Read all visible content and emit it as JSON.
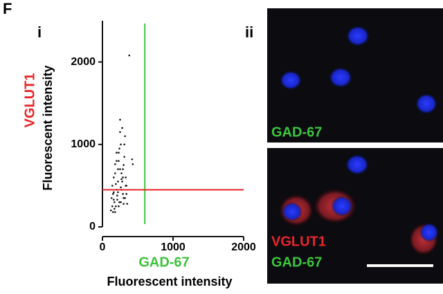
{
  "panel_label": "F",
  "chart_data": {
    "type": "scatter",
    "subpanel": "i",
    "y_label": "Fluorescent intensity",
    "y_label_marker": "VGLUT1",
    "x_label_marker": "GAD-67",
    "x_label": "Fluorescent intensity",
    "x": [
      120,
      130,
      140,
      150,
      160,
      170,
      180,
      190,
      200,
      210,
      220,
      230,
      240,
      250,
      260,
      270,
      280,
      290,
      300,
      310,
      320,
      330,
      340,
      350,
      140,
      160,
      180,
      200,
      220,
      240,
      260,
      280,
      300,
      150,
      170,
      190,
      210,
      230,
      250,
      270,
      290,
      310,
      330,
      200,
      230,
      260,
      290,
      320,
      380,
      420,
      430,
      250,
      270,
      220,
      180,
      300,
      340,
      160
    ],
    "y": [
      200,
      350,
      500,
      180,
      420,
      300,
      650,
      250,
      800,
      380,
      550,
      900,
      300,
      700,
      1000,
      450,
      1200,
      600,
      350,
      850,
      1100,
      500,
      400,
      280,
      250,
      600,
      180,
      450,
      700,
      950,
      300,
      550,
      750,
      400,
      220,
      520,
      330,
      800,
      1300,
      650,
      400,
      1000,
      600,
      900,
      250,
      480,
      700,
      350,
      2080,
      820,
      760,
      1150,
      580,
      420,
      760,
      280,
      500,
      330
    ],
    "color": "#111111",
    "xlim": [
      0,
      2000
    ],
    "ylim": [
      0,
      2500
    ],
    "xticks": [
      0,
      1000,
      2000
    ],
    "yticks": [
      0,
      1000,
      2000
    ],
    "x_threshold": 600,
    "x_threshold_color": "#3cc43c",
    "y_threshold": 450,
    "y_threshold_color": "#e8262a"
  },
  "images": {
    "subpanel": "ii",
    "top_label": "GAD-67",
    "bottom_labels": [
      "VGLUT1",
      "GAD-67"
    ]
  }
}
